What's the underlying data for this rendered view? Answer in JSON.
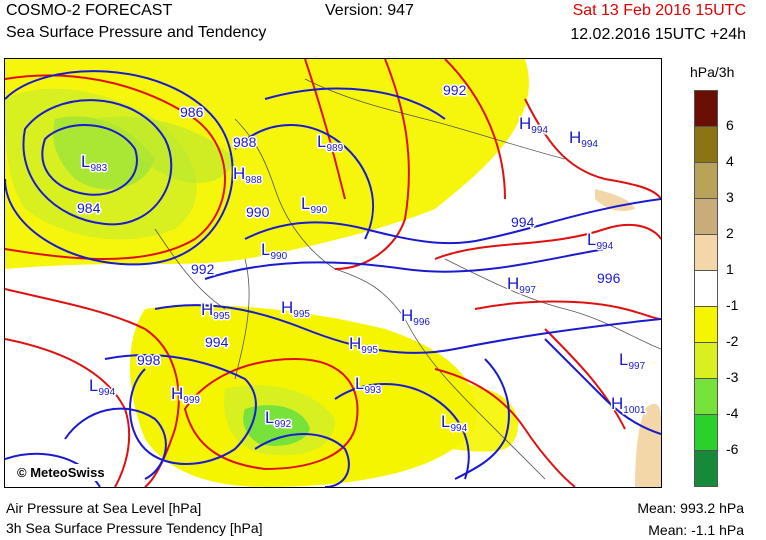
{
  "header": {
    "title": "COSMO-2 FORECAST",
    "subtitle": "Sea Surface Pressure and Tendency",
    "version": "Version: 947",
    "valid_date": "Sat 13 Feb 2016 15UTC",
    "run": "12.02.2016 15UTC +24h"
  },
  "legend": {
    "unit": "hPa/3h",
    "ticks": [
      "6",
      "4",
      "3",
      "2",
      "1",
      "-1",
      "-2",
      "-3",
      "-4",
      "-6"
    ],
    "colors": [
      "#6b0f04",
      "#8a7413",
      "#b7a35a",
      "#c8ad7a",
      "#f4d7a8",
      "#ffffff",
      "#f5f500",
      "#d8f020",
      "#77e23a",
      "#2bd12a",
      "#178a3a"
    ]
  },
  "credit": "© MeteoSwiss",
  "map": {
    "isobar_labels": [
      "986",
      "988",
      "992",
      "984",
      "990",
      "994",
      "996",
      "998",
      "992",
      "994"
    ],
    "pressure_centers": [
      {
        "type": "L",
        "value": "983"
      },
      {
        "type": "H",
        "value": "988"
      },
      {
        "type": "L",
        "value": "989"
      },
      {
        "type": "L",
        "value": "990"
      },
      {
        "type": "L",
        "value": "990"
      },
      {
        "type": "H",
        "value": "994"
      },
      {
        "type": "H",
        "value": "994"
      },
      {
        "type": "L",
        "value": "994"
      },
      {
        "type": "H",
        "value": "997"
      },
      {
        "type": "H",
        "value": "995"
      },
      {
        "type": "H",
        "value": "995"
      },
      {
        "type": "H",
        "value": "996"
      },
      {
        "type": "H",
        "value": "995"
      },
      {
        "type": "L",
        "value": "993"
      },
      {
        "type": "L",
        "value": "994"
      },
      {
        "type": "H",
        "value": "999"
      },
      {
        "type": "L",
        "value": "994"
      },
      {
        "type": "L",
        "value": "992"
      },
      {
        "type": "L",
        "value": "997"
      },
      {
        "type": "H",
        "value": "1001"
      }
    ],
    "colors": {
      "isobar": "#1a1ad0",
      "tendency": "#e01010",
      "land_outline": "#555555"
    }
  },
  "footer": {
    "line1": "Air Pressure at Sea Level [hPa]",
    "line2": "3h Sea Surface Pressure Tendency [hPa]",
    "mean1": "Mean:  993.2 hPa",
    "mean2": "Mean:   -1.1 hPa"
  }
}
